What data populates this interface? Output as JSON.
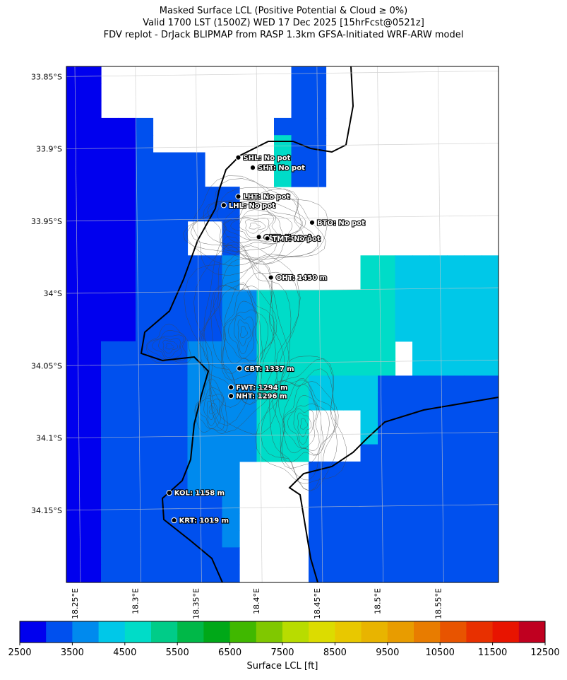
{
  "title": {
    "line1": "Masked Surface LCL (Positive Potential & Cloud ≥ 0%)",
    "line2": "Valid 1700 LST (1500Z) WED 17 Dec 2025 [15hrFcst@0521z]",
    "line3": "FDV replot - DrJack BLIPMAP from RASP 1.3km GFSA-Initiated WRF-ARW model"
  },
  "axes": {
    "lat_ticks": [
      "33.85°S",
      "33.9°S",
      "33.95°S",
      "34°S",
      "34.05°S",
      "34.1°S",
      "34.15°S"
    ],
    "lat_values": [
      -33.85,
      -33.9,
      -33.95,
      -34.0,
      -34.05,
      -34.1,
      -34.15
    ],
    "lon_ticks": [
      "18.25°E",
      "18.3°E",
      "18.35°E",
      "18.4°E",
      "18.45°E",
      "18.5°E",
      "18.55°E"
    ],
    "lon_values": [
      18.25,
      18.3,
      18.35,
      18.4,
      18.45,
      18.5,
      18.55
    ],
    "lat_range": [
      -34.2,
      -33.843
    ],
    "lon_range": [
      18.243,
      18.6
    ],
    "grid": true
  },
  "stations": [
    {
      "label": "SHL: No pot",
      "lat": -33.906,
      "lon": 18.385
    },
    {
      "label": "SHT: No pot",
      "lat": -33.913,
      "lon": 18.397
    },
    {
      "label": "LHT: No pot",
      "lat": -33.933,
      "lon": 18.385
    },
    {
      "label": "LHL: No pot",
      "lat": -33.939,
      "lon": 18.373
    },
    {
      "label": "BTO: No pot",
      "lat": -33.951,
      "lon": 18.446
    },
    {
      "label": "GUT: No pot",
      "lat": -33.961,
      "lon": 18.402
    },
    {
      "label": "TMT: No pot",
      "lat": -33.962,
      "lon": 18.409
    },
    {
      "label": "OHT: 1450 m",
      "lat": -33.989,
      "lon": 18.412
    },
    {
      "label": "CBT: 1337 m",
      "lat": -34.052,
      "lon": 18.386
    },
    {
      "label": "FWT: 1294 m",
      "lat": -34.065,
      "lon": 18.379
    },
    {
      "label": "NHT: 1296 m",
      "lat": -34.071,
      "lon": 18.379
    },
    {
      "label": "KOL: 1158 m",
      "lat": -34.138,
      "lon": 18.328
    },
    {
      "label": "KRT: 1019 m",
      "lat": -34.157,
      "lon": 18.332
    }
  ],
  "colorbar": {
    "title": "Surface LCL [ft]",
    "tick_labels": [
      "2500",
      "3500",
      "4500",
      "5500",
      "6500",
      "7500",
      "8500",
      "9500",
      "10500",
      "11500",
      "12500"
    ],
    "tick_values": [
      2500,
      3500,
      4500,
      5500,
      6500,
      7500,
      8500,
      9500,
      10500,
      11500,
      12500
    ],
    "bins": [
      2500,
      3000,
      3500,
      4000,
      4500,
      5000,
      5500,
      6000,
      6500,
      7000,
      7500,
      8000,
      8500,
      9000,
      9500,
      10000,
      10500,
      11000,
      11500,
      12000,
      12500
    ],
    "colors": [
      "#0000ee",
      "#0050ee",
      "#008aee",
      "#00c8e8",
      "#00dcc8",
      "#00cc88",
      "#00b848",
      "#00a818",
      "#40b800",
      "#80c800",
      "#b8dc00",
      "#dcdc00",
      "#e8c800",
      "#e8b400",
      "#e89c00",
      "#e87c00",
      "#e85400",
      "#e83000",
      "#e81400",
      "#c00020"
    ]
  }
}
